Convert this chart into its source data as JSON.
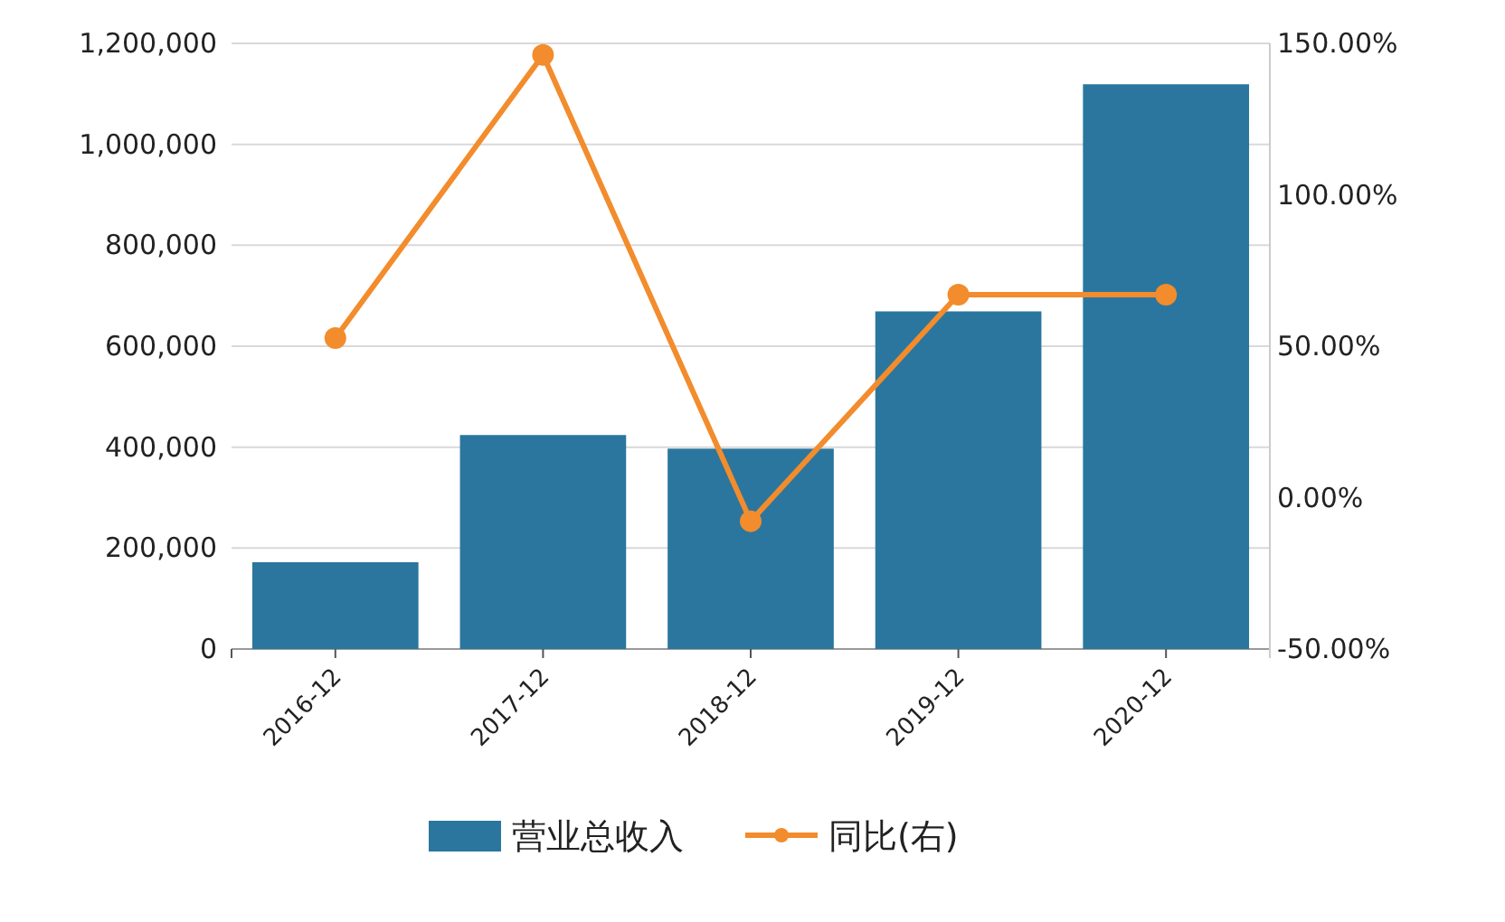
{
  "chart_data": {
    "type": "bar",
    "categories": [
      "2016-12",
      "2017-12",
      "2018-12",
      "2019-12",
      "2020-12"
    ],
    "series": [
      {
        "name": "营业总收入",
        "color": "#2b769e",
        "values": [
          172000,
          424000,
          397000,
          669000,
          1119000
        ]
      },
      {
        "name": "同比(右)",
        "type": "line",
        "axis": "y2",
        "color": "#f28c2c",
        "marker": "circle",
        "values": [
          52.7,
          146.2,
          -7.8,
          67,
          67
        ]
      }
    ],
    "ylim": [
      0,
      1200000
    ],
    "yticks": [
      {
        "value": 0,
        "label": "0"
      },
      {
        "value": 200000,
        "label": "200,000"
      },
      {
        "value": 400000,
        "label": "400,000"
      },
      {
        "value": 600000,
        "label": "600,000"
      },
      {
        "value": 800000,
        "label": "800,000"
      },
      {
        "value": 1000000,
        "label": "1,000,000"
      },
      {
        "value": 1200000,
        "label": "1,200,000"
      }
    ],
    "y2lim": [
      -50,
      150
    ],
    "y2ticks": [
      {
        "value": -50,
        "label": "-50.00%"
      },
      {
        "value": 0,
        "label": "0.00%"
      },
      {
        "value": 50,
        "label": "50.00%"
      },
      {
        "value": 100,
        "label": "100.00%"
      },
      {
        "value": 150,
        "label": "150.00%"
      }
    ],
    "grid": "y",
    "legend": "bottom"
  }
}
